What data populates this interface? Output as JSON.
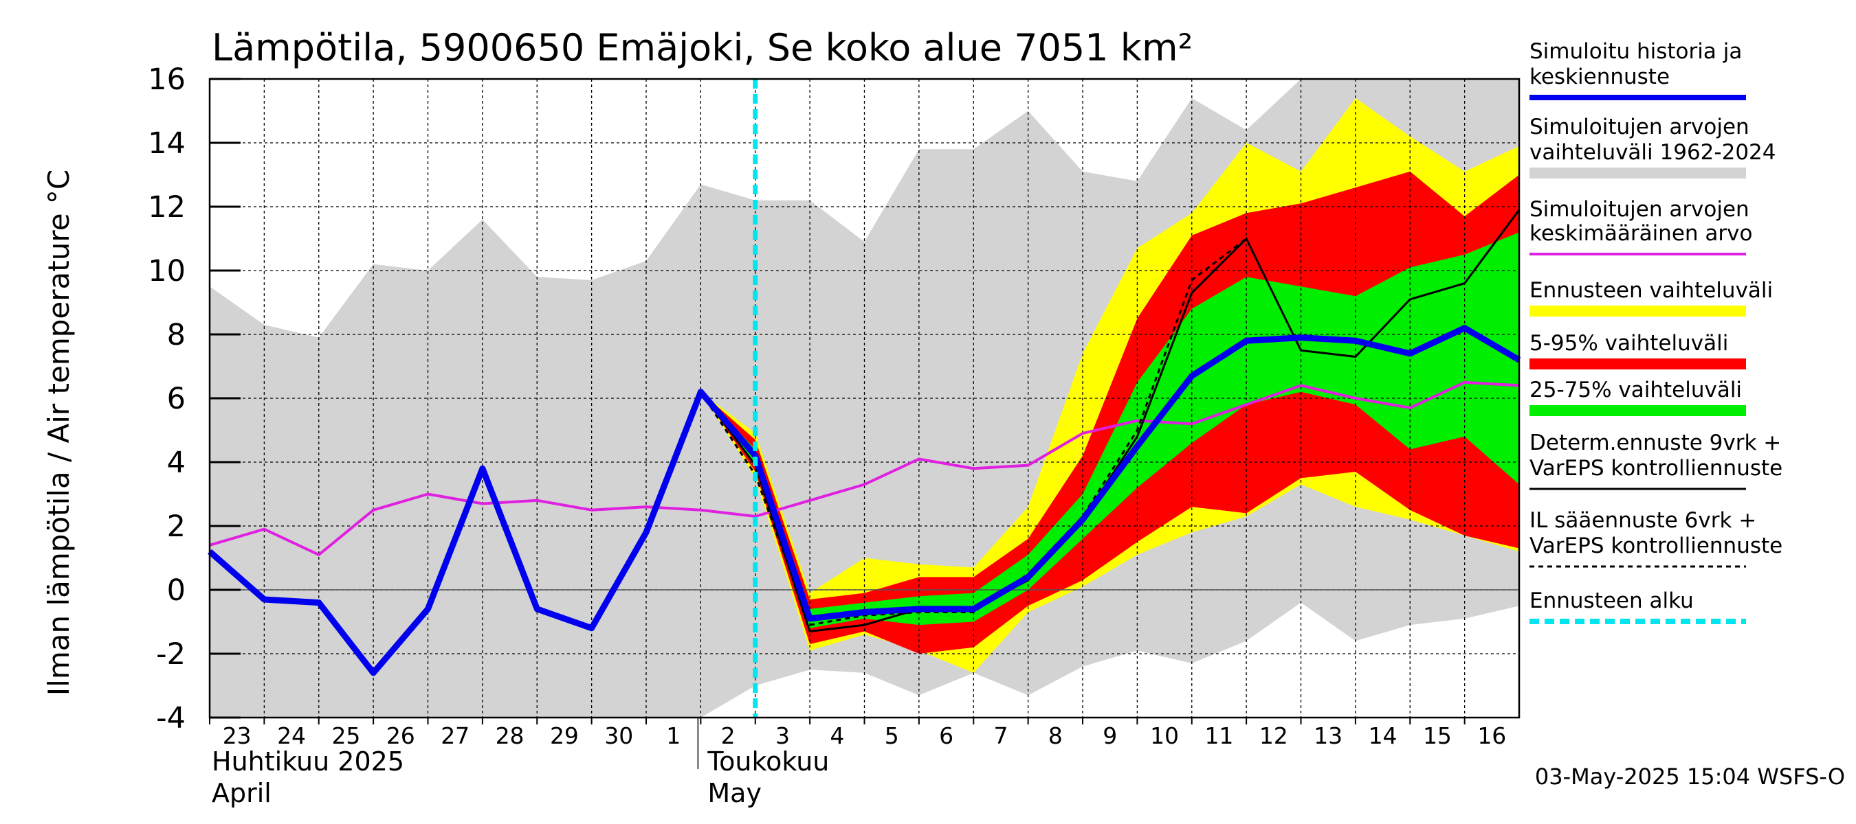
{
  "chart_data": {
    "type": "line",
    "title": "Lämpötila, 5900650 Emäjoki, Se koko alue 7051 km²",
    "ylabel": "Ilman lämpötila / Air temperature   °C",
    "ylim": [
      -4,
      16
    ],
    "yticks": [
      -4,
      -2,
      0,
      2,
      4,
      6,
      8,
      10,
      12,
      14,
      16
    ],
    "x_start_day": 23,
    "x_end_day": 47,
    "x_tick_labels": [
      "23",
      "24",
      "25",
      "26",
      "27",
      "28",
      "29",
      "30",
      "1",
      "2",
      "3",
      "4",
      "5",
      "6",
      "7",
      "8",
      "9",
      "10",
      "11",
      "12",
      "13",
      "14",
      "15",
      "16"
    ],
    "month_labels": [
      {
        "fi": "Huhtikuu  2025",
        "en": "April",
        "day": 23
      },
      {
        "fi": "Toukokuu",
        "en": "May",
        "day": 32
      }
    ],
    "forecast_start_day": 33,
    "grid": true,
    "legend_position": "right",
    "series": {
      "historical_range": {
        "name": "Simuloitujen arvojen vaihteluväli 1962-2024",
        "color": "#d3d3d3",
        "x": [
          23,
          24,
          25,
          26,
          27,
          28,
          29,
          30,
          31,
          32,
          33,
          34,
          35,
          36,
          37,
          38,
          39,
          40,
          41,
          42,
          43,
          44,
          45,
          46,
          47
        ],
        "upper": [
          9.5,
          8.3,
          7.9,
          10.2,
          10.0,
          11.6,
          9.8,
          9.7,
          10.3,
          12.7,
          12.2,
          12.2,
          10.9,
          13.8,
          13.8,
          15.0,
          13.1,
          12.8,
          15.4,
          14.4,
          16.0,
          16.0,
          16.0,
          16.0,
          16.0
        ],
        "lower": [
          -4.0,
          -4.0,
          -4.0,
          -4.0,
          -4.0,
          -4.0,
          -4.0,
          -4.0,
          -4.0,
          -4.0,
          -3.0,
          -2.5,
          -2.6,
          -3.3,
          -2.6,
          -3.3,
          -2.4,
          -1.9,
          -2.3,
          -1.6,
          -0.4,
          -1.6,
          -1.1,
          -0.9,
          -0.5
        ]
      },
      "ensemble_range": {
        "name": "Ennusteen vaihteluväli",
        "color": "#ffff00",
        "x": [
          32,
          33,
          34,
          35,
          36,
          37,
          38,
          39,
          40,
          41,
          42,
          43,
          44,
          45,
          46,
          47
        ],
        "upper": [
          6.2,
          4.9,
          -0.1,
          1.0,
          0.8,
          0.7,
          2.6,
          7.4,
          10.7,
          11.8,
          14.0,
          13.1,
          15.4,
          14.2,
          13.1,
          13.9
        ],
        "lower": [
          6.2,
          3.5,
          -1.9,
          -1.4,
          -1.9,
          -2.6,
          -0.7,
          0.1,
          1.1,
          1.8,
          2.3,
          3.3,
          2.6,
          2.2,
          1.7,
          1.2
        ]
      },
      "range_5_95": {
        "name": "5-95% vaihteluväli",
        "color": "#ff0000",
        "x": [
          32,
          33,
          34,
          35,
          36,
          37,
          38,
          39,
          40,
          41,
          42,
          43,
          44,
          45,
          46,
          47
        ],
        "upper": [
          6.2,
          4.7,
          -0.3,
          -0.1,
          0.4,
          0.4,
          1.6,
          4.2,
          8.5,
          11.1,
          11.8,
          12.1,
          12.6,
          13.1,
          11.7,
          13.0
        ],
        "lower": [
          6.2,
          3.7,
          -1.7,
          -1.3,
          -2.0,
          -1.8,
          -0.5,
          0.3,
          1.5,
          2.6,
          2.4,
          3.5,
          3.7,
          2.5,
          1.7,
          1.3
        ]
      },
      "range_25_75": {
        "name": "25-75% vaihteluväli",
        "color": "#00ee00",
        "x": [
          32,
          33,
          34,
          35,
          36,
          37,
          38,
          39,
          40,
          41,
          42,
          43,
          44,
          45,
          46,
          47
        ],
        "upper": [
          6.2,
          4.4,
          -0.6,
          -0.4,
          -0.2,
          -0.1,
          1.1,
          3.0,
          6.5,
          8.8,
          9.8,
          9.5,
          9.2,
          10.1,
          10.5,
          11.2
        ],
        "lower": [
          6.2,
          3.9,
          -1.2,
          -0.9,
          -1.1,
          -1.0,
          0.0,
          1.6,
          3.2,
          4.6,
          5.8,
          6.2,
          5.8,
          4.4,
          4.8,
          3.3
        ]
      },
      "simulated_mean": {
        "name": "Simuloitujen arvojen keskimääräinen arvo",
        "color": "#e020e0",
        "x": [
          23,
          24,
          25,
          26,
          27,
          28,
          29,
          30,
          31,
          32,
          33,
          34,
          35,
          36,
          37,
          38,
          39,
          40,
          41,
          42,
          43,
          44,
          45,
          46,
          47
        ],
        "y": [
          1.4,
          1.9,
          1.1,
          2.5,
          3.0,
          2.7,
          2.8,
          2.5,
          2.6,
          2.5,
          2.3,
          2.8,
          3.3,
          4.1,
          3.8,
          3.9,
          4.9,
          5.3,
          5.2,
          5.8,
          6.4,
          6.0,
          5.7,
          6.5,
          6.4
        ]
      },
      "simulated_history": {
        "name": "Simuloitu historia ja keskiennuste",
        "color": "#0000ee",
        "x": [
          23,
          24,
          25,
          26,
          27,
          28,
          29,
          30,
          31,
          32,
          33,
          34,
          35,
          36,
          37,
          38,
          39,
          40,
          41,
          42,
          43,
          44,
          45,
          46,
          47
        ],
        "y": [
          1.2,
          -0.3,
          -0.4,
          -2.6,
          -0.6,
          3.8,
          -0.6,
          -1.2,
          1.8,
          6.2,
          4.2,
          -0.9,
          -0.7,
          -0.6,
          -0.6,
          0.4,
          2.2,
          4.5,
          6.7,
          7.8,
          7.9,
          7.8,
          7.4,
          8.2,
          7.2
        ]
      },
      "determ_forecast": {
        "name": "Determ.ennuste 9vrk + VarEPS kontrolliennuste",
        "color": "#000000",
        "x": [
          32,
          33,
          34,
          35,
          36,
          37,
          38,
          39,
          40,
          41,
          42,
          43,
          44,
          45,
          46,
          47
        ],
        "y": [
          6.2,
          3.9,
          -1.3,
          -1.1,
          -0.6,
          -0.6,
          0.3,
          2.2,
          4.8,
          9.3,
          11.0,
          7.5,
          7.3,
          9.1,
          9.6,
          11.9
        ]
      },
      "il_forecast": {
        "name": "IL sääennuste 6vrk + VarEPS kontrolliennuste",
        "color": "#000000",
        "x": [
          32,
          33,
          34,
          35,
          36,
          37,
          38,
          39,
          40,
          41,
          42
        ],
        "y": [
          6.2,
          3.6,
          -1.1,
          -0.8,
          -0.7,
          -0.7,
          0.5,
          2.3,
          5.0,
          9.7,
          11.0
        ]
      }
    }
  },
  "legend": {
    "items": [
      {
        "label": "Simuloitu historia ja\nkeskiennuste",
        "color": "#0000ee",
        "style": "thick"
      },
      {
        "label": "Simuloitujen arvojen\nvaihteluväli 1962-2024",
        "color": "#d3d3d3",
        "style": "band"
      },
      {
        "label": "Simuloitujen arvojen\nkeskimääräinen arvo",
        "color": "#e020e0",
        "style": "thin"
      },
      {
        "label": "Ennusteen vaihteluväli",
        "color": "#ffff00",
        "style": "band"
      },
      {
        "label": "5-95% vaihteluväli",
        "color": "#ff0000",
        "style": "band"
      },
      {
        "label": "25-75% vaihteluväli",
        "color": "#00ee00",
        "style": "band"
      },
      {
        "label": "Determ.ennuste 9vrk +\nVarEPS kontrolliennuste",
        "color": "#000000",
        "style": "line"
      },
      {
        "label": "IL sääennuste 6vrk  +\n  VarEPS kontrolliennuste",
        "color": "#000000",
        "style": "dashed"
      },
      {
        "label": "Ennusteen alku",
        "color": "#00e5ee",
        "style": "dotted"
      }
    ]
  },
  "footer": "03-May-2025 15:04 WSFS-O"
}
